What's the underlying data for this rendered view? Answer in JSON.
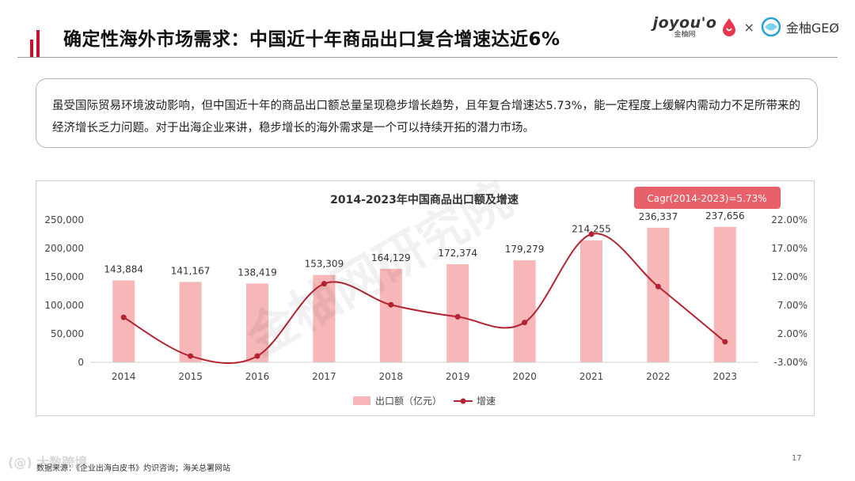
{
  "header": {
    "title": "确定性海外市场需求：中国近十年商品出口复合增速达近6%",
    "logo_left_en": "joyou'o",
    "logo_left_cn": "金柚网",
    "logo_separator": "×",
    "logo_right_text": "金柚GEØ"
  },
  "description": "虽受国际贸易环境波动影响，但中国近十年的商品出口额总量呈现稳步增长趋势，且年复合增速达5.73%，能一定程度上缓解内需动力不足所带来的经济增长乏力问题。对于出海企业来讲，稳步增长的海外需求是一个可以持续开拓的潜力市场。",
  "chart_data": {
    "type": "bar",
    "title": "2014-2023年中国商品出口额及增速",
    "categories": [
      "2014",
      "2015",
      "2016",
      "2017",
      "2018",
      "2019",
      "2020",
      "2021",
      "2022",
      "2023"
    ],
    "series": [
      {
        "name": "出口额（亿元）",
        "type": "bar",
        "axis": "left",
        "values": [
          143884,
          141167,
          138419,
          153309,
          164129,
          172374,
          179279,
          214255,
          236337,
          237656
        ],
        "labels": [
          "143,884",
          "141,167",
          "138,419",
          "153,309",
          "164,129",
          "172,374",
          "179,279",
          "214,255",
          "236,337",
          "237,656"
        ],
        "color": "#f7b6b8"
      },
      {
        "name": "增速",
        "type": "line",
        "axis": "right",
        "values": [
          4.9,
          -1.9,
          -1.9,
          10.8,
          7.1,
          5.0,
          4.0,
          19.5,
          10.3,
          0.6
        ],
        "color": "#b32433"
      }
    ],
    "y_left": {
      "min": 0,
      "max": 250000,
      "ticks": [
        "0",
        "50,000",
        "100,000",
        "150,000",
        "200,000",
        "250,000"
      ]
    },
    "y_right": {
      "min": -3,
      "max": 22,
      "ticks": [
        "-3.00%",
        "2.00%",
        "7.00%",
        "12.00%",
        "17.00%",
        "22.00%"
      ]
    },
    "annotation": "Cagr(2014-2023)=5.73%",
    "annotation_color": "#e8606a",
    "legend_position": "bottom",
    "grid": false
  },
  "watermark": "金柚网研究院",
  "footer": {
    "source": "数据来源：《企业出海白皮书》灼识咨询；海关总署网站",
    "brand": "(@) 大数跨境",
    "page": "17"
  },
  "colors": {
    "accent": "#c8102e",
    "bar": "#f7b6b8",
    "line": "#b32433",
    "annotation_bg": "#e8606a"
  }
}
